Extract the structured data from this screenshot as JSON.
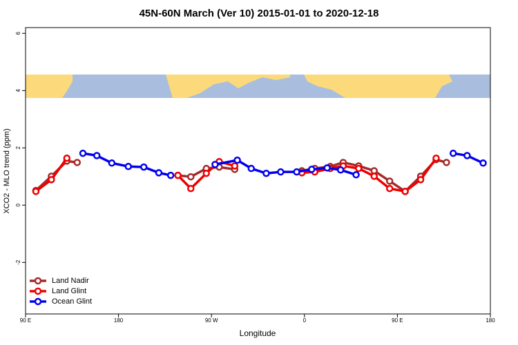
{
  "chart_data": {
    "type": "line",
    "title": "45N-60N March (Ver 10)   2015-01-01 to 2020-12-18",
    "x_label": "Longitude",
    "y_label": "XCO2 - MLO trend (ppm)",
    "xlim": [
      90,
      540
    ],
    "xticks": [
      {
        "value": 90,
        "label": "90 E"
      },
      {
        "value": 180,
        "label": "180"
      },
      {
        "value": 270,
        "label": "90 W"
      },
      {
        "value": 360,
        "label": "0"
      },
      {
        "value": 450,
        "label": "90 E"
      },
      {
        "value": 540,
        "label": "180"
      }
    ],
    "ylim": [
      -3.8,
      6.2
    ],
    "yticks": [
      -2,
      0,
      2,
      4,
      6
    ],
    "grid": false,
    "legend": "bottom-left",
    "series": [
      {
        "name": "Land Nadir",
        "color": "#a52a2a",
        "x": [
          100,
          115,
          130,
          140,
          null,
          237.5,
          250,
          265,
          277.5,
          292.5,
          null,
          357.5,
          370,
          385,
          397.5,
          412.5,
          427.5,
          442.5,
          457.5,
          472.5,
          487.5,
          497.5
        ],
        "values": [
          0.51,
          1.01,
          1.54,
          1.49,
          null,
          1.04,
          0.99,
          1.28,
          1.33,
          1.25,
          null,
          1.2,
          1.28,
          1.35,
          1.49,
          1.37,
          1.2,
          0.84,
          0.48,
          1.01,
          1.59,
          1.49
        ]
      },
      {
        "name": "Land Glint",
        "color": "#ee0000",
        "x": [
          100,
          115,
          130,
          null,
          237.5,
          250,
          265,
          277.5,
          292.5,
          null,
          357.5,
          370,
          385,
          397.5,
          412.5,
          427.5,
          442.5,
          457.5,
          472.5,
          487.5
        ],
        "values": [
          0.48,
          0.89,
          1.64,
          null,
          1.04,
          0.58,
          1.11,
          1.52,
          1.37,
          null,
          1.13,
          1.16,
          1.28,
          1.37,
          1.28,
          1.01,
          0.58,
          0.48,
          0.89,
          1.64
        ]
      },
      {
        "name": "Ocean Glint",
        "color": "#0000ee",
        "x": [
          145.5,
          159,
          173.5,
          189.5,
          204.5,
          219,
          230.5,
          null,
          273.5,
          295,
          308.5,
          323,
          337,
          352.5,
          367,
          382,
          395,
          410,
          null,
          504,
          517.5,
          533
        ],
        "values": [
          1.81,
          1.73,
          1.47,
          1.35,
          1.33,
          1.13,
          1.04,
          null,
          1.42,
          1.57,
          1.28,
          1.11,
          1.16,
          1.16,
          1.25,
          1.3,
          1.23,
          1.06,
          null,
          1.81,
          1.73,
          1.47
        ]
      }
    ]
  }
}
